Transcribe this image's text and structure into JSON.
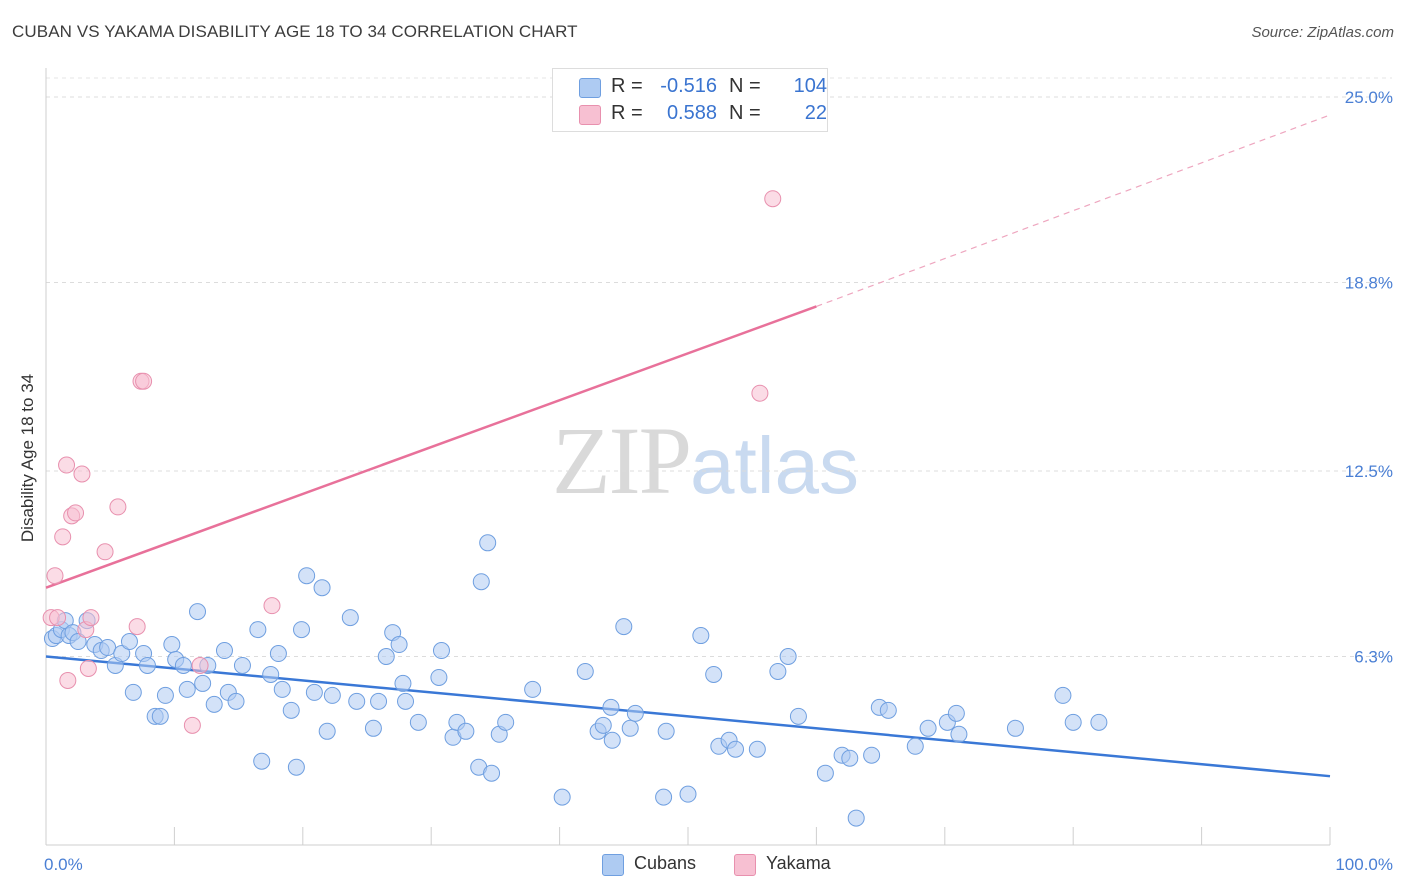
{
  "header": {
    "title": "CUBAN VS YAKAMA DISABILITY AGE 18 TO 34 CORRELATION CHART",
    "source": "Source: ZipAtlas.com"
  },
  "watermark": {
    "zip": "ZIP",
    "atlas": "atlas"
  },
  "legend": {
    "rows": [
      {
        "r_label": "R =",
        "r_value": "-0.516",
        "n_label": "N =",
        "n_value": "104",
        "color": "#aecbf2",
        "border": "#6f9fe0"
      },
      {
        "r_label": "R =",
        "r_value": "0.588",
        "n_label": "N =",
        "n_value": "22",
        "color": "#f7c0d2",
        "border": "#e890ae"
      }
    ]
  },
  "bottom_legend": {
    "cubans": "Cubans",
    "yakama": "Yakama"
  },
  "chart_data": {
    "type": "scatter",
    "title": "CUBAN VS YAKAMA DISABILITY AGE 18 TO 34 CORRELATION CHART",
    "xlabel": "",
    "ylabel": "Disability Age 18 to 34",
    "xlim": [
      0,
      100
    ],
    "ylim": [
      0,
      25.0
    ],
    "x_tick_labels": [
      "0.0%",
      "100.0%"
    ],
    "y_ticks": [
      6.3,
      12.5,
      18.8,
      25.0
    ],
    "y_tick_labels": [
      "6.3%",
      "12.5%",
      "18.8%",
      "25.0%"
    ],
    "grid": "horizontal dashed",
    "legend_position": "top-center",
    "colors": {
      "Cubans": "#3a78d6",
      "Yakama": "#e8719a"
    },
    "series": [
      {
        "name": "Cubans",
        "trend": {
          "x": [
            0,
            100
          ],
          "y": [
            6.3,
            2.3
          ],
          "style": "solid"
        },
        "points": [
          [
            0.5,
            6.9
          ],
          [
            0.8,
            7.0
          ],
          [
            1.2,
            7.2
          ],
          [
            1.5,
            7.5
          ],
          [
            1.8,
            7.0
          ],
          [
            2.1,
            7.1
          ],
          [
            2.5,
            6.8
          ],
          [
            3.2,
            7.5
          ],
          [
            3.8,
            6.7
          ],
          [
            4.3,
            6.5
          ],
          [
            4.8,
            6.6
          ],
          [
            5.4,
            6.0
          ],
          [
            5.9,
            6.4
          ],
          [
            6.5,
            6.8
          ],
          [
            6.8,
            5.1
          ],
          [
            7.6,
            6.4
          ],
          [
            7.9,
            6.0
          ],
          [
            8.5,
            4.3
          ],
          [
            8.9,
            4.3
          ],
          [
            9.3,
            5.0
          ],
          [
            9.8,
            6.7
          ],
          [
            10.1,
            6.2
          ],
          [
            10.7,
            6.0
          ],
          [
            11.0,
            5.2
          ],
          [
            11.8,
            7.8
          ],
          [
            12.2,
            5.4
          ],
          [
            12.6,
            6.0
          ],
          [
            13.1,
            4.7
          ],
          [
            13.9,
            6.5
          ],
          [
            14.2,
            5.1
          ],
          [
            14.8,
            4.8
          ],
          [
            15.3,
            6.0
          ],
          [
            16.5,
            7.2
          ],
          [
            16.8,
            2.8
          ],
          [
            17.5,
            5.7
          ],
          [
            18.1,
            6.4
          ],
          [
            18.4,
            5.2
          ],
          [
            19.1,
            4.5
          ],
          [
            19.5,
            2.6
          ],
          [
            19.9,
            7.2
          ],
          [
            20.3,
            9.0
          ],
          [
            20.9,
            5.1
          ],
          [
            21.5,
            8.6
          ],
          [
            21.9,
            3.8
          ],
          [
            22.3,
            5.0
          ],
          [
            23.7,
            7.6
          ],
          [
            24.2,
            4.8
          ],
          [
            25.5,
            3.9
          ],
          [
            25.9,
            4.8
          ],
          [
            26.5,
            6.3
          ],
          [
            27.0,
            7.1
          ],
          [
            27.5,
            6.7
          ],
          [
            27.8,
            5.4
          ],
          [
            28.0,
            4.8
          ],
          [
            29.0,
            4.1
          ],
          [
            30.6,
            5.6
          ],
          [
            30.8,
            6.5
          ],
          [
            31.7,
            3.6
          ],
          [
            32.0,
            4.1
          ],
          [
            32.7,
            3.8
          ],
          [
            33.7,
            2.6
          ],
          [
            33.9,
            8.8
          ],
          [
            34.4,
            10.1
          ],
          [
            34.7,
            2.4
          ],
          [
            35.3,
            3.7
          ],
          [
            35.8,
            4.1
          ],
          [
            37.9,
            5.2
          ],
          [
            40.2,
            1.6
          ],
          [
            42.0,
            5.8
          ],
          [
            43.0,
            3.8
          ],
          [
            43.4,
            4.0
          ],
          [
            44.0,
            4.6
          ],
          [
            44.1,
            3.5
          ],
          [
            45.0,
            7.3
          ],
          [
            45.5,
            3.9
          ],
          [
            45.9,
            4.4
          ],
          [
            48.1,
            1.6
          ],
          [
            48.3,
            3.8
          ],
          [
            50.0,
            1.7
          ],
          [
            51.0,
            7.0
          ],
          [
            52.0,
            5.7
          ],
          [
            52.4,
            3.3
          ],
          [
            53.2,
            3.5
          ],
          [
            53.7,
            3.2
          ],
          [
            55.4,
            3.2
          ],
          [
            57.0,
            5.8
          ],
          [
            57.8,
            6.3
          ],
          [
            58.6,
            4.3
          ],
          [
            60.7,
            2.4
          ],
          [
            62.0,
            3.0
          ],
          [
            62.6,
            2.9
          ],
          [
            63.1,
            0.9
          ],
          [
            64.3,
            3.0
          ],
          [
            64.9,
            4.6
          ],
          [
            65.6,
            4.5
          ],
          [
            67.7,
            3.3
          ],
          [
            68.7,
            3.9
          ],
          [
            70.2,
            4.1
          ],
          [
            70.9,
            4.4
          ],
          [
            71.1,
            3.7
          ],
          [
            75.5,
            3.9
          ],
          [
            79.2,
            5.0
          ],
          [
            80.0,
            4.1
          ],
          [
            82.0,
            4.1
          ]
        ]
      },
      {
        "name": "Yakama",
        "trend": {
          "x": [
            0,
            60
          ],
          "y": [
            8.6,
            18.0
          ],
          "dashed_to": [
            100,
            24.4
          ]
        },
        "points": [
          [
            0.4,
            7.6
          ],
          [
            0.7,
            9.0
          ],
          [
            0.9,
            7.6
          ],
          [
            1.3,
            10.3
          ],
          [
            1.6,
            12.7
          ],
          [
            1.7,
            5.5
          ],
          [
            2.0,
            11.0
          ],
          [
            2.3,
            11.1
          ],
          [
            2.8,
            12.4
          ],
          [
            3.1,
            7.2
          ],
          [
            3.3,
            5.9
          ],
          [
            3.5,
            7.6
          ],
          [
            4.6,
            9.8
          ],
          [
            5.6,
            11.3
          ],
          [
            7.1,
            7.3
          ],
          [
            7.4,
            15.5
          ],
          [
            7.6,
            15.5
          ],
          [
            11.4,
            4.0
          ],
          [
            12.0,
            6.0
          ],
          [
            17.6,
            8.0
          ],
          [
            55.6,
            15.1
          ],
          [
            56.6,
            21.6
          ]
        ]
      }
    ]
  }
}
